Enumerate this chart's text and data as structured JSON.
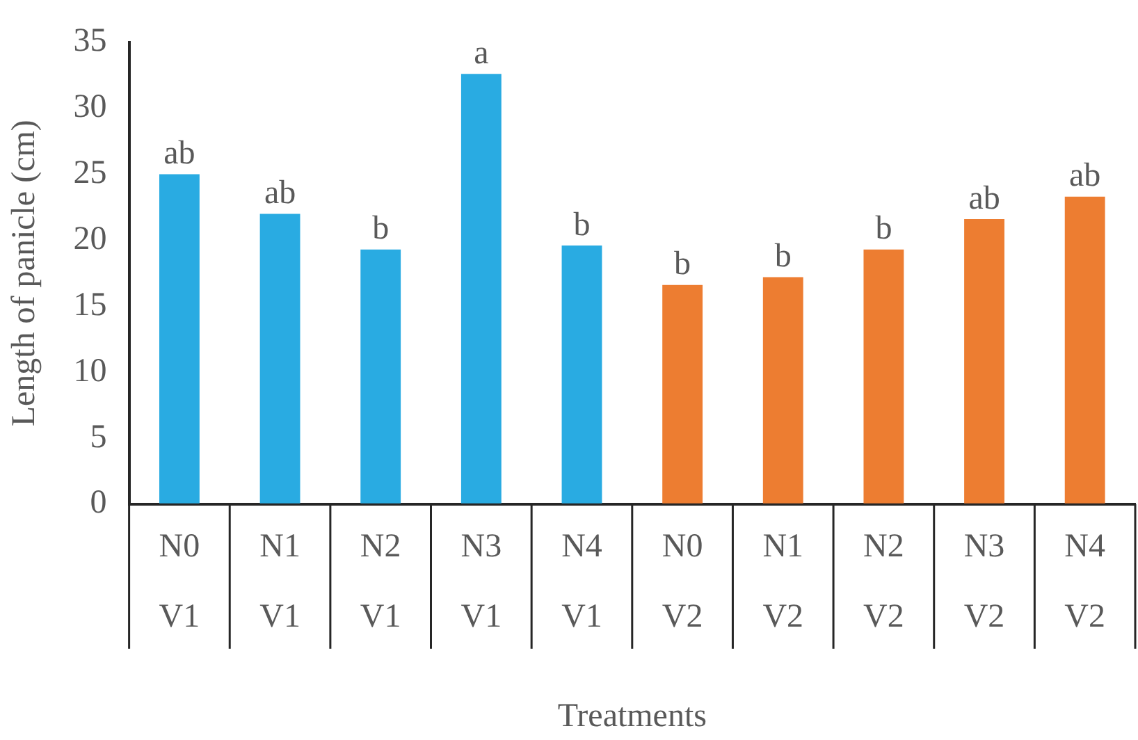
{
  "chart_data": {
    "type": "bar",
    "xlabel": "Treatments",
    "ylabel": "Length of panicle (cm)",
    "categories": [
      "N0\nV1",
      "N1\nV1",
      "N2\nV1",
      "N3\nV1",
      "N4\nV1",
      "N0\nV2",
      "N1\nV2",
      "N2\nV2",
      "N3\nV2",
      "N4\nV2"
    ],
    "values": [
      25.0,
      22.0,
      19.3,
      32.6,
      19.6,
      16.6,
      17.2,
      19.3,
      21.6,
      23.3
    ],
    "colors": [
      "#29abe2",
      "#29abe2",
      "#29abe2",
      "#29abe2",
      "#29abe2",
      "#ed7d31",
      "#ed7d31",
      "#ed7d31",
      "#ed7d31",
      "#ed7d31"
    ],
    "value_labels": [
      "ab",
      "ab",
      "b",
      "a",
      "b",
      "b",
      "b",
      "b",
      "ab",
      "ab"
    ],
    "ylim": [
      0,
      35
    ],
    "yticks": [
      0,
      5,
      10,
      15,
      20,
      25,
      30,
      35
    ],
    "grid": false,
    "legend": false
  }
}
